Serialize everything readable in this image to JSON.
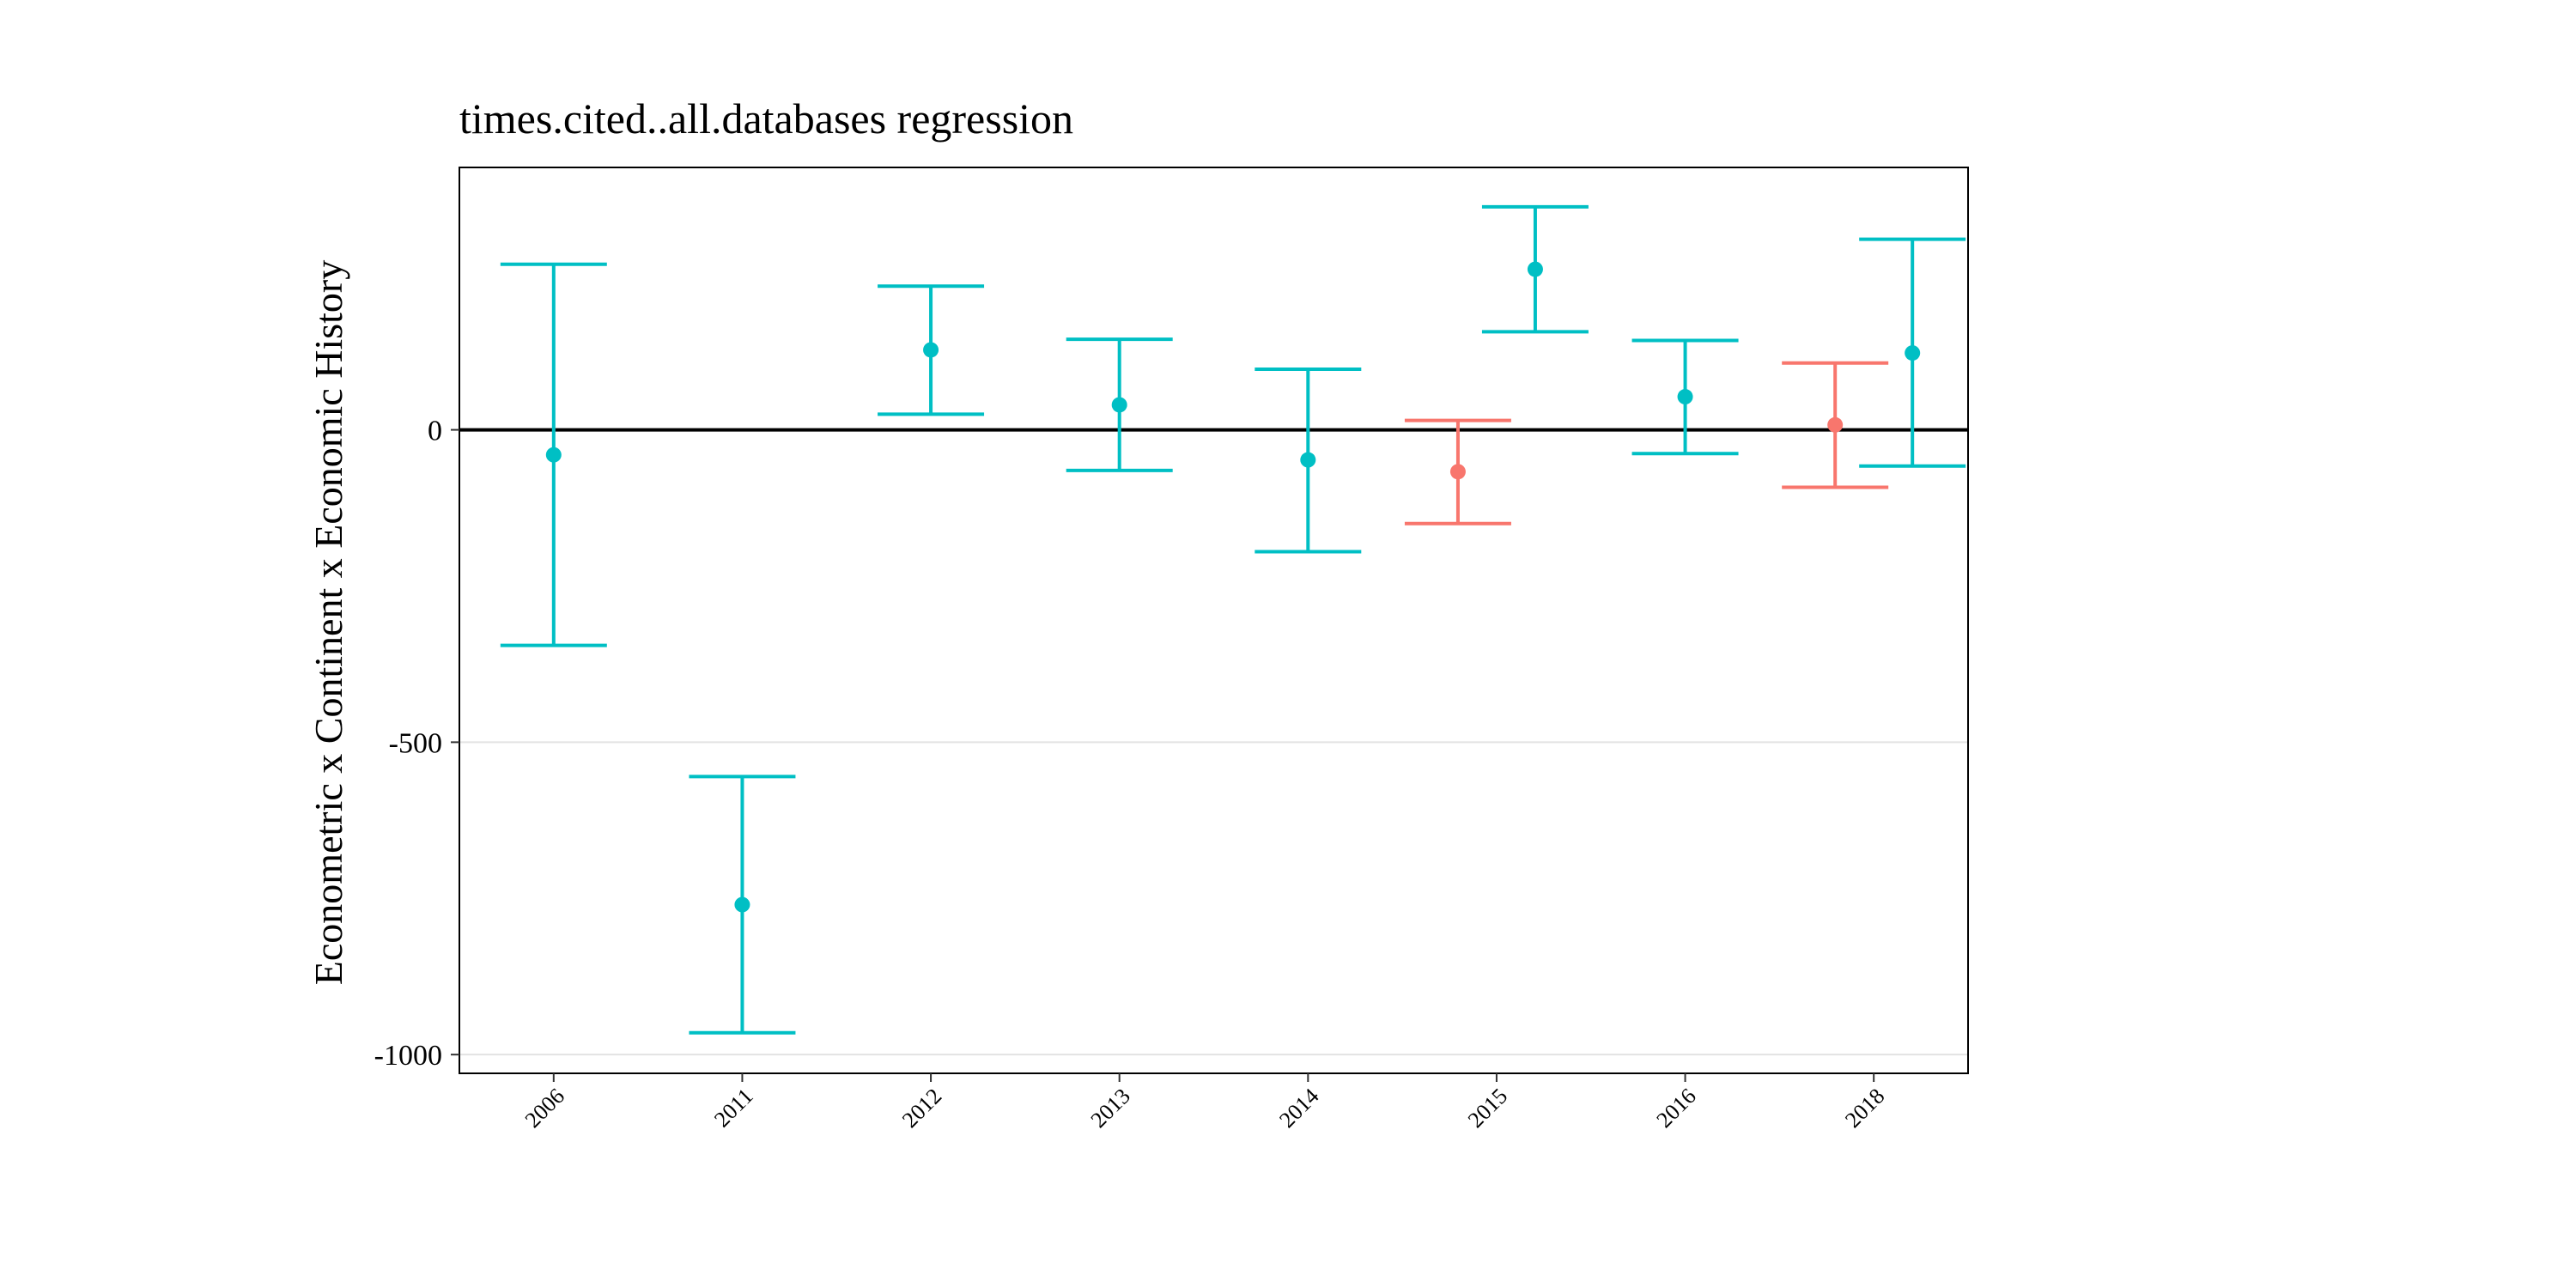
{
  "chart_data": {
    "type": "errorbar",
    "title": "times.cited..all.databases regression",
    "ylabel": "Econometric x Continent x Economic History",
    "xlabel": "",
    "categories": [
      "2006",
      "2011",
      "2012",
      "2013",
      "2014",
      "2015",
      "2016",
      "2018"
    ],
    "ylim": [
      -1030,
      420
    ],
    "yticks": [
      0,
      -500,
      -1000
    ],
    "ytick_labels": [
      "0",
      "-500",
      "-1000"
    ],
    "reference_line": 0,
    "grid": "horizontal major lines",
    "legend": "none",
    "colors": {
      "teal": "#00BFC4",
      "salmon": "#F8766D"
    },
    "points": [
      {
        "category": "2006",
        "group": "teal",
        "estimate": -40,
        "lower": -345,
        "upper": 265
      },
      {
        "category": "2011",
        "group": "teal",
        "estimate": -760,
        "lower": -965,
        "upper": -555
      },
      {
        "category": "2012",
        "group": "teal",
        "estimate": 128,
        "lower": 25,
        "upper": 230
      },
      {
        "category": "2013",
        "group": "teal",
        "estimate": 40,
        "lower": -65,
        "upper": 145
      },
      {
        "category": "2014",
        "group": "teal",
        "estimate": -48,
        "lower": -195,
        "upper": 97
      },
      {
        "category": "2015",
        "group": "salmon",
        "estimate": -67,
        "lower": -150,
        "upper": 15
      },
      {
        "category": "2015",
        "group": "teal",
        "estimate": 257,
        "lower": 157,
        "upper": 357
      },
      {
        "category": "2016",
        "group": "teal",
        "estimate": 53,
        "lower": -38,
        "upper": 143
      },
      {
        "category": "2018",
        "group": "salmon",
        "estimate": 8,
        "lower": -92,
        "upper": 107
      },
      {
        "category": "2018",
        "group": "teal",
        "estimate": 123,
        "lower": -58,
        "upper": 305
      }
    ]
  }
}
